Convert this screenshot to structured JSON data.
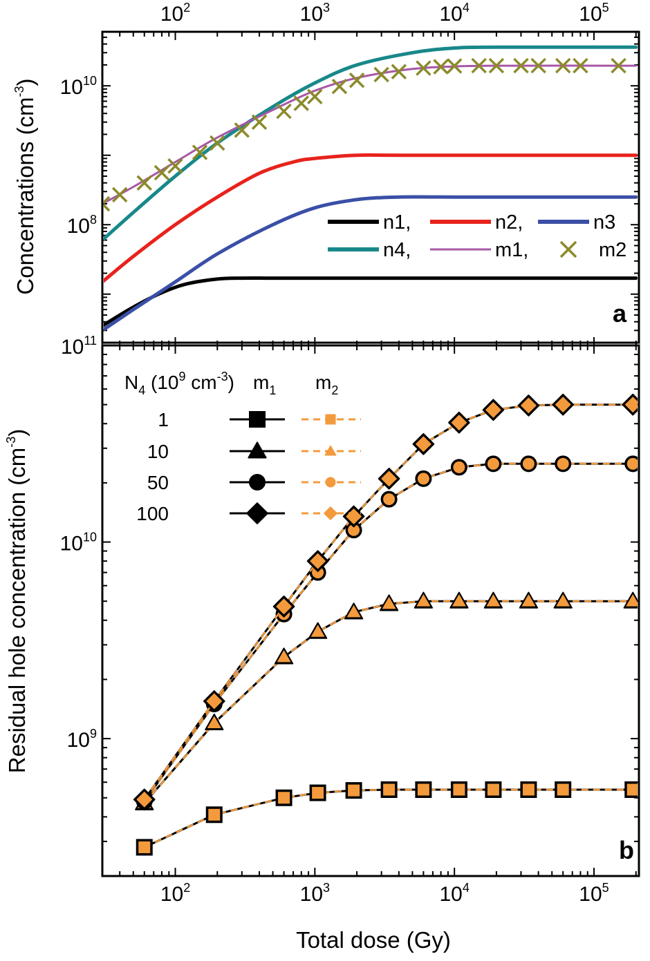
{
  "figure": {
    "x_axis": {
      "title": "Total dose (Gy)",
      "scale": "log",
      "range": [
        30,
        210000
      ],
      "tick_labels": [
        {
          "value": 100,
          "base": "10",
          "exp": "2"
        },
        {
          "value": 1000,
          "base": "10",
          "exp": "3"
        },
        {
          "value": 10000,
          "base": "10",
          "exp": "4"
        },
        {
          "value": 100000,
          "base": "10",
          "exp": "5"
        }
      ]
    }
  },
  "chart_data": [
    {
      "type": "line",
      "panel_label": "a",
      "xlabel": "Total dose (Gy)",
      "xscale": "log",
      "xlim": [
        30,
        210000
      ],
      "ylabel": "Concentrations (cm",
      "ylabel_exp": "-3",
      "ylabel_end": ")",
      "yscale": "log",
      "ylim": [
        2000000,
        60000000000
      ],
      "y_tick_labels": [
        {
          "value": 100000000,
          "base": "10",
          "exp": "8"
        },
        {
          "value": 10000000000,
          "base": "10",
          "exp": "10"
        }
      ],
      "legend": {
        "placement": "lower-right",
        "rows": [
          [
            {
              "series": "n1",
              "text": "n1,"
            },
            {
              "series": "n2",
              "text": "n2,"
            },
            {
              "series": "n3",
              "text": "n3"
            }
          ],
          [
            {
              "series": "n4",
              "text": "n4,"
            },
            {
              "series": "m1",
              "text": "m1,"
            },
            {
              "series": "m2",
              "text": "m2"
            }
          ]
        ]
      },
      "series": [
        {
          "name": "n1",
          "color": "#000000",
          "style": "line",
          "x": [
            30,
            50,
            80,
            120,
            200,
            300,
            500,
            1000,
            10000,
            200000
          ],
          "y": [
            3500000,
            6500000,
            10500000,
            14000000,
            16500000,
            17000000,
            17000000,
            17000000,
            17000000,
            17000000
          ]
        },
        {
          "name": "n2",
          "color": "#e8221c",
          "style": "line",
          "x": [
            30,
            50,
            100,
            200,
            400,
            700,
            1000,
            2000,
            5000,
            200000
          ],
          "y": [
            15000000,
            35000000,
            100000000,
            250000000,
            550000000,
            800000000,
            900000000,
            1000000000,
            1000000000,
            1000000000
          ]
        },
        {
          "name": "n3",
          "color": "#3a4fa6",
          "style": "line",
          "x": [
            30,
            50,
            100,
            200,
            500,
            1000,
            2000,
            4000,
            10000,
            200000
          ],
          "y": [
            3000000,
            6000000,
            15000000,
            38000000,
            100000000,
            175000000,
            230000000,
            250000000,
            250000000,
            250000000
          ]
        },
        {
          "name": "n4",
          "color": "#18888a",
          "style": "line",
          "x": [
            30,
            50,
            100,
            200,
            500,
            1000,
            2000,
            5000,
            10000,
            20000,
            200000
          ],
          "y": [
            60000000,
            150000000,
            500000000,
            1500000000,
            5000000000,
            11000000000,
            20000000000,
            30000000000,
            35000000000,
            36000000000,
            36000000000
          ]
        },
        {
          "name": "m1",
          "color": "#a857a6",
          "style": "line",
          "x": [
            30,
            50,
            100,
            200,
            500,
            1000,
            2000,
            5000,
            10000,
            20000,
            200000
          ],
          "y": [
            200000000,
            350000000,
            800000000,
            1800000000,
            4500000000,
            8500000000,
            13000000000,
            17500000000,
            19000000000,
            19500000000,
            19500000000
          ]
        },
        {
          "name": "m2",
          "color": "#8b8a2b",
          "style": "cross",
          "x": [
            30,
            40,
            60,
            80,
            100,
            150,
            200,
            300,
            400,
            600,
            800,
            1000,
            1500,
            2000,
            3000,
            4000,
            6000,
            8000,
            10000,
            15000,
            20000,
            30000,
            40000,
            60000,
            80000,
            150000
          ],
          "y": [
            200000000,
            270000000,
            400000000,
            560000000,
            700000000,
            1100000000,
            1500000000,
            2300000000,
            3000000000,
            4300000000,
            5600000000,
            7000000000,
            9800000000,
            12000000000,
            14500000000,
            16000000000,
            18000000000,
            18800000000,
            19300000000,
            19500000000,
            19500000000,
            19500000000,
            19500000000,
            19500000000,
            19500000000,
            19500000000
          ]
        }
      ]
    },
    {
      "type": "line",
      "panel_label": "b",
      "xlabel": "Total dose (Gy)",
      "xscale": "log",
      "xlim": [
        30,
        210000
      ],
      "ylabel": "Residual hole concentration (cm",
      "ylabel_exp": "-3",
      "ylabel_end": ")",
      "yscale": "log",
      "ylim": [
        200000000,
        100000000000
      ],
      "y_tick_labels": [
        {
          "value": 1000000000,
          "base": "10",
          "exp": "9"
        },
        {
          "value": 10000000000,
          "base": "10",
          "exp": "10"
        },
        {
          "value": 100000000000,
          "base": "10",
          "exp": "11"
        }
      ],
      "legend": {
        "placement": "upper-left",
        "header_n4": "N",
        "header_n4_sub": "4",
        "header_unit_a": " (10",
        "header_unit_exp": "9",
        "header_unit_b": " cm",
        "header_unit_exp2": "-3",
        "header_unit_c": ")",
        "header_m1": "m",
        "header_m1_sub": "1",
        "header_m2": "m",
        "header_m2_sub": "2",
        "rows": [
          {
            "n4": "1",
            "marker": "square"
          },
          {
            "n4": "10",
            "marker": "triangle"
          },
          {
            "n4": "50",
            "marker": "circle"
          },
          {
            "n4": "100",
            "marker": "diamond"
          }
        ]
      },
      "marker_colors": {
        "m1": "#000000",
        "m2": "#f39a3c"
      },
      "x": [
        60,
        190,
        600,
        1050,
        1900,
        3400,
        6000,
        10800,
        19000,
        34000,
        60000,
        190000
      ],
      "series": [
        {
          "name": "N4 = 1",
          "n4": "1",
          "marker": "square",
          "values": [
            280000000,
            410000000,
            500000000,
            530000000,
            545000000,
            550000000,
            550000000,
            550000000,
            550000000,
            550000000,
            550000000,
            550000000
          ]
        },
        {
          "name": "N4 = 10",
          "n4": "10",
          "marker": "triangle",
          "values": [
            470000000,
            1200000000,
            2600000000,
            3500000000,
            4400000000,
            4850000000,
            5000000000,
            5000000000,
            5000000000,
            5000000000,
            5000000000,
            5000000000
          ]
        },
        {
          "name": "N4 = 50",
          "n4": "50",
          "marker": "circle",
          "values": [
            480000000,
            1500000000,
            4300000000,
            7000000000,
            11500000000,
            16500000000,
            21000000000,
            24000000000,
            25000000000,
            25000000000,
            25000000000,
            25000000000
          ]
        },
        {
          "name": "N4 = 100",
          "n4": "100",
          "marker": "diamond",
          "values": [
            490000000,
            1550000000,
            4700000000,
            8000000000,
            13500000000,
            21000000000,
            31500000000,
            40500000000,
            47000000000,
            49500000000,
            50000000000,
            50000000000
          ]
        }
      ]
    }
  ]
}
